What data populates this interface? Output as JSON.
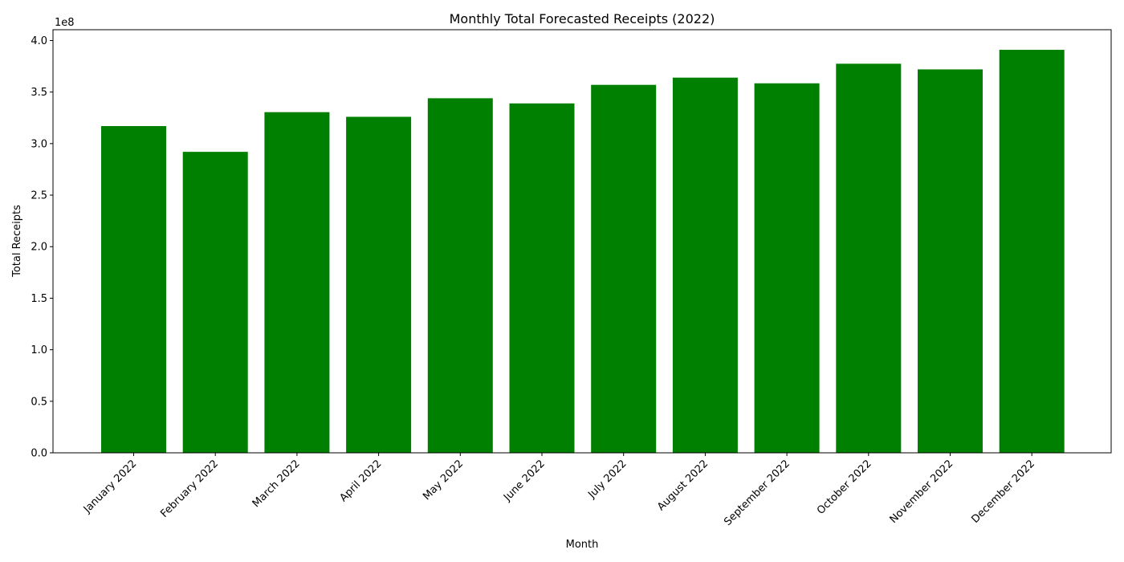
{
  "chart_data": {
    "type": "bar",
    "title": "Monthly Total Forecasted Receipts (2022)",
    "xlabel": "Month",
    "ylabel": "Total Receipts",
    "y_offset_label": "1e8",
    "categories": [
      "January 2022",
      "February 2022",
      "March 2022",
      "April 2022",
      "May 2022",
      "June 2022",
      "July 2022",
      "August 2022",
      "September 2022",
      "October 2022",
      "November 2022",
      "December 2022"
    ],
    "values": [
      317000000,
      292000000,
      330500000,
      326000000,
      344000000,
      339000000,
      357000000,
      364000000,
      358500000,
      377500000,
      372000000,
      391000000
    ],
    "ylim": [
      0,
      410500000
    ],
    "yticks": [
      0,
      50000000,
      100000000,
      150000000,
      200000000,
      250000000,
      300000000,
      350000000,
      400000000
    ],
    "ytick_labels": [
      "0.0",
      "0.5",
      "1.0",
      "1.5",
      "2.0",
      "2.5",
      "3.0",
      "3.5",
      "4.0"
    ],
    "bar_color": "#008000",
    "grid": false,
    "legend": "none"
  }
}
